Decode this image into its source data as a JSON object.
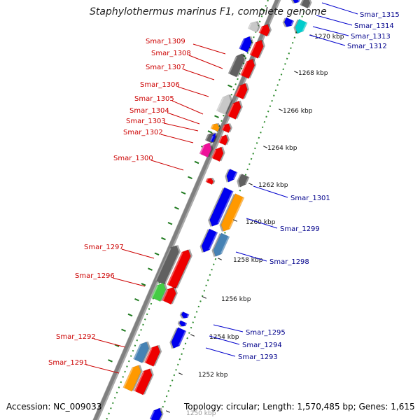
{
  "title": "Staphylothermus marinus F1, complete genome",
  "footer": {
    "accession": "Accession: NC_009033",
    "topology": "Topology: circular; Length: 1,570,485 bp; Genes: 1,615"
  },
  "colors": {
    "red_label": "#cc0000",
    "blue_label": "#00008b",
    "backbone": "#808080",
    "dotted_track": "#2e8b2e",
    "gene_red": "#ee0000",
    "gene_blue": "#0000ee",
    "gene_dark_gray": "#606060",
    "gene_light_gray": "#c8c8c8",
    "gene_orange": "#ff9900",
    "gene_steel": "#4682b4",
    "gene_green": "#44cc44",
    "gene_magenta": "#ee1199",
    "gene_cyan": "#00cccc"
  },
  "ticks": [
    "1270 kbp",
    "1268 kbp",
    "1266 kbp",
    "1264 kbp",
    "1262 kbp",
    "1260 kbp",
    "1258 kbp",
    "1256 kbp",
    "1254 kbp",
    "1252 kbp",
    "1250 kbp"
  ],
  "left_labels": [
    "Smar_1309",
    "Smar_1308",
    "Smar_1307",
    "Smar_1306",
    "Smar_1305",
    "Smar_1304",
    "Smar_1303",
    "Smar_1302",
    "Smar_1300",
    "Smar_1297",
    "Smar_1296",
    "Smar_1292",
    "Smar_1291"
  ],
  "right_labels": [
    "Smar_1315",
    "Smar_1314",
    "Smar_1313",
    "Smar_1312",
    "Smar_1301",
    "Smar_1299",
    "Smar_1298",
    "Smar_1295",
    "Smar_1294",
    "Smar_1293"
  ]
}
